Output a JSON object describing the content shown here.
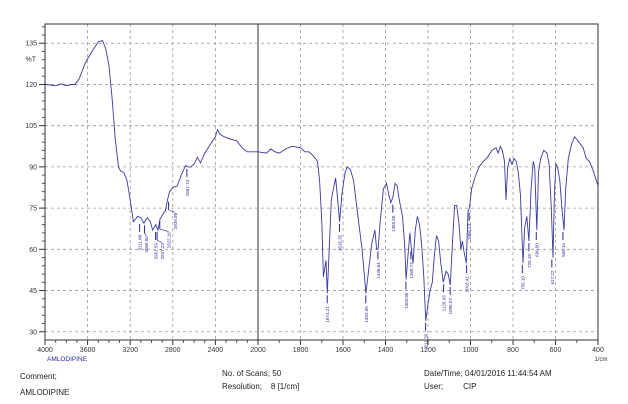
{
  "chart_data": {
    "type": "line",
    "title": "",
    "xlabel": "1/cm",
    "ylabel": "%T",
    "sample_label": "AMLODIPINE",
    "xlim": [
      4000,
      400
    ],
    "x_break": 2000,
    "ylim": [
      27,
      142
    ],
    "grid": true,
    "x_ticks": [
      4000,
      3600,
      3200,
      2800,
      2400,
      2000,
      1800,
      1600,
      1400,
      1200,
      1000,
      800,
      600,
      400
    ],
    "y_ticks": [
      30,
      45,
      60,
      75,
      90,
      105,
      120,
      135
    ],
    "line_color": "#3a3aa0",
    "series": [
      {
        "x": [
          4000,
          3950,
          3900,
          3850,
          3800,
          3750,
          3720,
          3680,
          3620,
          3560,
          3500,
          3460,
          3430,
          3400,
          3370,
          3340,
          3310,
          3290,
          3260,
          3230,
          3200,
          3170,
          3130,
          3100,
          3070,
          3040,
          3010,
          2990,
          2960,
          2940,
          2920,
          2890,
          2870,
          2850,
          2830,
          2800,
          2760,
          2720,
          2680,
          2660,
          2630,
          2600,
          2570,
          2540,
          2500,
          2450,
          2400,
          2380,
          2360,
          2320,
          2250,
          2200,
          2150,
          2100,
          2050,
          2000,
          1960,
          1940,
          1920,
          1900,
          1870,
          1840,
          1800,
          1780,
          1760,
          1740,
          1720,
          1710,
          1700,
          1692,
          1686,
          1680,
          1674,
          1665,
          1655,
          1645,
          1635,
          1625,
          1616,
          1605,
          1590,
          1580,
          1565,
          1550,
          1530,
          1510,
          1492,
          1480,
          1465,
          1450,
          1442,
          1435,
          1425,
          1410,
          1395,
          1385,
          1375,
          1365,
          1355,
          1345,
          1335,
          1320,
          1310,
          1303,
          1295,
          1285,
          1278,
          1270,
          1260,
          1250,
          1240,
          1230,
          1220,
          1211,
          1200,
          1190,
          1180,
          1170,
          1160,
          1150,
          1140,
          1128,
          1115,
          1105,
          1095,
          1085,
          1075,
          1065,
          1055,
          1045,
          1038,
          1030,
          1020,
          1012,
          1005,
          995,
          980,
          960,
          940,
          920,
          900,
          880,
          870,
          860,
          850,
          840,
          833,
          825,
          815,
          805,
          795,
          785,
          775,
          765,
          753,
          745,
          735,
          725,
          715,
          705,
          698,
          688,
          680,
          670,
          655,
          640,
          630,
          620,
          612,
          605,
          598,
          590,
          580,
          570,
          560,
          552,
          540,
          525,
          510,
          500,
          490,
          480,
          470,
          455,
          440,
          420,
          400
        ],
        "y": [
          120,
          119.8,
          119.5,
          120.2,
          119.6,
          120,
          120,
          122,
          128,
          132,
          135.5,
          136,
          133,
          127,
          115,
          100,
          90,
          88.5,
          88,
          85,
          78,
          70,
          72,
          71.5,
          69.5,
          71.5,
          70,
          67,
          69,
          67,
          71,
          73,
          74,
          78,
          81,
          82.5,
          83,
          87,
          90.5,
          90,
          90,
          91,
          93.5,
          91.5,
          95,
          98,
          101,
          103.5,
          102,
          101,
          100,
          99.5,
          97,
          95.5,
          95.5,
          95.5,
          95,
          96.5,
          95.5,
          95,
          96.5,
          97.5,
          97,
          95.5,
          95.5,
          94,
          92,
          85,
          70,
          50,
          53,
          56,
          44,
          60,
          78,
          82,
          86,
          78,
          70,
          80,
          88,
          90,
          89,
          85,
          72,
          60,
          44,
          52,
          62,
          67,
          60,
          60,
          70,
          82,
          84,
          80,
          77,
          79,
          84,
          83,
          78,
          72,
          62,
          49,
          57,
          66,
          60,
          55,
          67,
          72,
          69,
          62,
          50,
          34,
          40,
          45,
          48,
          58,
          65,
          63,
          55,
          48,
          52,
          51,
          47,
          62,
          76,
          76,
          70,
          60,
          63,
          59,
          55,
          74,
          75,
          82,
          86,
          90,
          92,
          93.5,
          96,
          97,
          95,
          97.5,
          96,
          92,
          78,
          90,
          93,
          91,
          93,
          92,
          88,
          80,
          55,
          68,
          72,
          63,
          82,
          92,
          90,
          67,
          88,
          93,
          96,
          95,
          91,
          75,
          57,
          80,
          91,
          90,
          85,
          75,
          67,
          82,
          93,
          98,
          101,
          100,
          99,
          98,
          97,
          93,
          92,
          88,
          83
        ]
      }
    ],
    "peak_labels": [
      {
        "x": 3111.8,
        "y": 70,
        "text": "3111.80"
      },
      {
        "x": 3066.0,
        "y": 69.5,
        "text": "3066.00"
      },
      {
        "x": 2961.59,
        "y": 67,
        "text": "2961.59"
      },
      {
        "x": 2947.23,
        "y": 67,
        "text": "2947.23"
      },
      {
        "x": 2922.16,
        "y": 71,
        "text": "2922.16"
      },
      {
        "x": 2839.86,
        "y": 78,
        "text": "2839.86"
      },
      {
        "x": 2667.74,
        "y": 90,
        "text": "2667.74"
      },
      {
        "x": 1674.21,
        "y": 44,
        "text": "1674.21"
      },
      {
        "x": 1616.35,
        "y": 70,
        "text": "1616.35"
      },
      {
        "x": 1492.9,
        "y": 44,
        "text": "1492.90"
      },
      {
        "x": 1435.64,
        "y": 60,
        "text": "1435.64"
      },
      {
        "x": 1365.6,
        "y": 77,
        "text": "1365.60"
      },
      {
        "x": 1303.88,
        "y": 49,
        "text": "1303.88"
      },
      {
        "x": 1280.73,
        "y": 60,
        "text": "1280.73"
      },
      {
        "x": 1211.3,
        "y": 34,
        "text": "1211.30"
      },
      {
        "x": 1126.43,
        "y": 48,
        "text": "1126.43"
      },
      {
        "x": 1095.57,
        "y": 47,
        "text": "1095.57"
      },
      {
        "x": 1018.41,
        "y": 55,
        "text": "1018.41"
      },
      {
        "x": 1006.13,
        "y": 74,
        "text": "1006.13"
      },
      {
        "x": 756.1,
        "y": 55,
        "text": "756.10"
      },
      {
        "x": 725.18,
        "y": 63,
        "text": "725.18"
      },
      {
        "x": 690.5,
        "y": 67,
        "text": "690.50"
      },
      {
        "x": 617.22,
        "y": 57,
        "text": "617.22"
      },
      {
        "x": 565.14,
        "y": 67,
        "text": "565.14"
      }
    ]
  },
  "footer": {
    "comment_label": "Comment;",
    "comment_value": "AMLODIPINE",
    "scans": "No. of Scans; 50",
    "resolution": "Resolution;    8 [1/cm]",
    "datetime": "Date/Time; 04/01/2016 11:44:54 AM",
    "user": "User;         CIP"
  }
}
